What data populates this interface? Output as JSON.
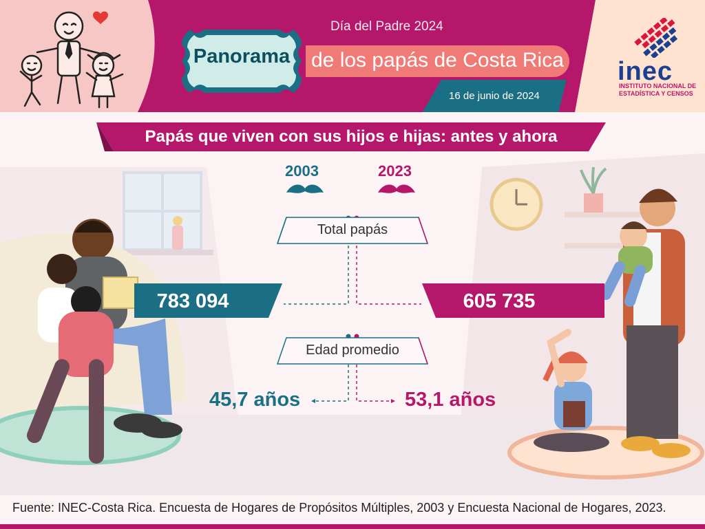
{
  "header": {
    "event": "Día del Padre 2024",
    "badge": "Panorama",
    "title": "de los papás de Costa Rica",
    "date": "16 de junio de 2024"
  },
  "logo": {
    "name": "inec",
    "line1": "INSTITUTO NACIONAL DE",
    "line2": "ESTADÍSTICA Y CENSOS"
  },
  "section": {
    "title": "Papás que viven con sus hijos e hijas: antes y ahora"
  },
  "years": {
    "left": "2003",
    "right": "2023"
  },
  "metrics": {
    "total_label": "Total papás",
    "total_2003": "783 094",
    "total_2023": "605 735",
    "age_label": "Edad promedio",
    "age_2003": "45,7 años",
    "age_2023": "53,1 años"
  },
  "footer": {
    "source": "Fuente: INEC-Costa Rica. Encuesta de Hogares de Propósitos Múltiples, 2003 y Encuesta Nacional de Hogares, 2023."
  },
  "colors": {
    "magenta": "#b5176b",
    "teal": "#1b6f84",
    "coral": "#ef7a76"
  }
}
